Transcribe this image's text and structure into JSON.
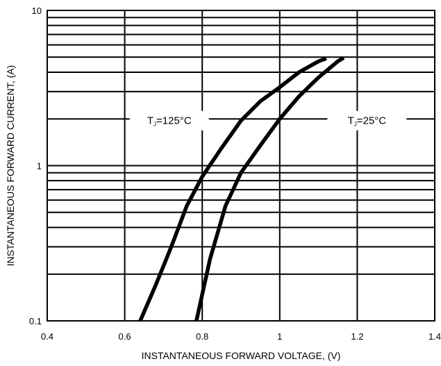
{
  "chart_data": {
    "type": "line",
    "title": "",
    "xlabel": "INSTANTANEOUS FORWARD VOLTAGE, (V)",
    "ylabel": "INSTANTANEOUS FORWARD CURRENT, (A)",
    "xlim": [
      0.4,
      1.4
    ],
    "ylim": [
      0.1,
      10
    ],
    "yscale": "log",
    "grid": true,
    "x_ticks": [
      0.4,
      0.6,
      0.8,
      1.0,
      1.2,
      1.4
    ],
    "x_tick_labels": [
      "0.4",
      "0.6",
      "0.8",
      "1",
      "1.2",
      "1.4"
    ],
    "y_ticks": [
      0.1,
      1,
      10
    ],
    "y_tick_labels": [
      "0.1",
      "1",
      "10"
    ],
    "x_gridlines": [
      0.6,
      0.8,
      1.0,
      1.2
    ],
    "y_gridlines": [
      0.2,
      0.3,
      0.4,
      0.5,
      0.6,
      0.7,
      0.8,
      0.9,
      1,
      2,
      3,
      4,
      5,
      6,
      7,
      8,
      9
    ],
    "series": [
      {
        "name": "TJ=125°C",
        "x": [
          0.64,
          0.68,
          0.72,
          0.76,
          0.8,
          0.85,
          0.9,
          0.95,
          1.0,
          1.05,
          1.1,
          1.12
        ],
        "y": [
          0.1,
          0.17,
          0.3,
          0.55,
          0.85,
          1.3,
          1.95,
          2.6,
          3.2,
          4.0,
          4.7,
          4.9
        ]
      },
      {
        "name": "TJ=25°C",
        "x": [
          0.785,
          0.82,
          0.86,
          0.9,
          0.95,
          1.0,
          1.05,
          1.1,
          1.15,
          1.165
        ],
        "y": [
          0.1,
          0.25,
          0.55,
          0.9,
          1.35,
          2.0,
          2.8,
          3.7,
          4.7,
          4.95
        ]
      }
    ],
    "annotations": [
      {
        "text": "T",
        "subscript": "J",
        "suffix": "=125°C",
        "x": 0.715,
        "y": 1.95
      },
      {
        "text": "T",
        "subscript": "J",
        "suffix": "=25°C",
        "x": 1.225,
        "y": 1.95
      }
    ]
  }
}
